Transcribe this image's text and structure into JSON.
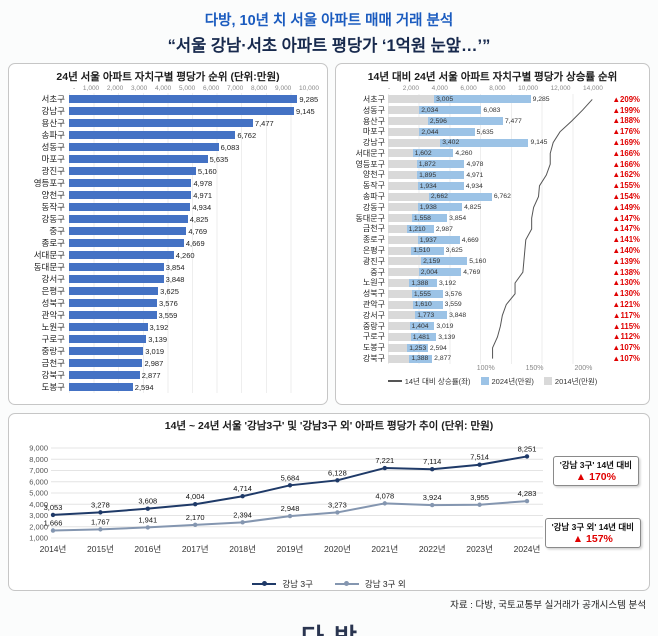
{
  "header": {
    "title": "다방, 10년 치 서울 아파트 매매 거래 분석",
    "subtitle": "“서울 강남·서초 아파트 평당가 ‘1억원 눈앞…’”"
  },
  "footer": {
    "source": "자료 : 다방, 국토교통부 실거래가 공개시스템 분석",
    "logo": "다방"
  },
  "colors": {
    "title_blue": "#1a5bbf",
    "subtitle_navy": "#17294d",
    "bar_blue": "#4472c4",
    "bar_2024": "#9cc3e6",
    "bar_2014": "#d9d9d9",
    "pct_red": "#e00000",
    "rate_line": "#555555",
    "line_gangnam": "#1f3a68",
    "line_other": "#8496b0"
  },
  "chart_data": [
    {
      "id": "price-rank-2024",
      "type": "bar",
      "orientation": "horizontal",
      "title": "24년 서울 아파트 자치구별 평당가 순위 (단위:만원)",
      "xlim": [
        0,
        10000
      ],
      "x_ticks": [
        "-",
        "1,000",
        "2,000",
        "3,000",
        "4,000",
        "5,000",
        "6,000",
        "7,000",
        "8,000",
        "9,000",
        "10,000"
      ],
      "grid": true,
      "categories": [
        "서초구",
        "강남구",
        "용산구",
        "송파구",
        "성동구",
        "마포구",
        "광진구",
        "영등포구",
        "양천구",
        "동작구",
        "강동구",
        "중구",
        "종로구",
        "서대문구",
        "동대문구",
        "강서구",
        "은평구",
        "성북구",
        "관악구",
        "노원구",
        "구로구",
        "중랑구",
        "금천구",
        "강북구",
        "도봉구"
      ],
      "values": [
        9285,
        9145,
        7477,
        6762,
        6083,
        5635,
        5160,
        4978,
        4971,
        4934,
        4825,
        4769,
        4669,
        4260,
        3854,
        3848,
        3625,
        3576,
        3559,
        3192,
        3139,
        3019,
        2987,
        2877,
        2594
      ]
    },
    {
      "id": "growth-rank",
      "type": "bar",
      "orientation": "horizontal",
      "title": "14년 대비 24년 서울 아파트 자치구별 평당가 상승률 순위",
      "xlim": [
        0,
        14000
      ],
      "x_ticks": [
        "-",
        "2,000",
        "4,000",
        "6,000",
        "8,000",
        "10,000",
        "12,000",
        "14,000"
      ],
      "pct_axis_max": 220,
      "pct_ticks": [
        "100%",
        "150%",
        "200%"
      ],
      "legend": [
        "14년 대비 상승률(좌)",
        "2024년(만원)",
        "2014년(만원)"
      ],
      "categories": [
        "서초구",
        "성동구",
        "용산구",
        "마포구",
        "강남구",
        "서대문구",
        "영등포구",
        "양천구",
        "동작구",
        "송파구",
        "강동구",
        "동대문구",
        "금천구",
        "종로구",
        "은평구",
        "광진구",
        "중구",
        "노원구",
        "성북구",
        "관악구",
        "강서구",
        "중랑구",
        "구로구",
        "도봉구",
        "강북구"
      ],
      "series": [
        {
          "name": "2014년(만원)",
          "values": [
            3005,
            2034,
            2596,
            2044,
            3402,
            1602,
            1872,
            1895,
            1934,
            2662,
            1938,
            1558,
            1210,
            1937,
            1510,
            2159,
            2004,
            1388,
            1555,
            1610,
            1773,
            1404,
            1481,
            1253,
            1388
          ]
        },
        {
          "name": "2024년(만원)",
          "values": [
            9285,
            6083,
            7477,
            5635,
            9145,
            4260,
            4978,
            4971,
            4934,
            6762,
            4825,
            3854,
            2987,
            4669,
            3625,
            5160,
            4769,
            3192,
            3576,
            3559,
            3848,
            3019,
            3139,
            2594,
            2877
          ]
        },
        {
          "name": "14년 대비 상승률",
          "values": [
            "▲209%",
            "▲199%",
            "▲188%",
            "▲176%",
            "▲169%",
            "▲166%",
            "▲166%",
            "▲162%",
            "▲155%",
            "▲154%",
            "▲149%",
            "▲147%",
            "▲147%",
            "▲141%",
            "▲140%",
            "▲139%",
            "▲138%",
            "▲130%",
            "▲130%",
            "▲121%",
            "▲117%",
            "▲115%",
            "▲112%",
            "▲107%",
            "▲107%"
          ]
        }
      ]
    },
    {
      "id": "trend",
      "type": "line",
      "title": "14년 ~ 24년 서울 '강남3구' 및 '강남3구 외' 아파트 평당가 추이 (단위: 만원)",
      "x": [
        "2014년",
        "2015년",
        "2016년",
        "2017년",
        "2018년",
        "2019년",
        "2020년",
        "2021년",
        "2022년",
        "2023년",
        "2024년"
      ],
      "ylim": [
        1000,
        9000
      ],
      "y_ticks": [
        "1,000",
        "2,000",
        "3,000",
        "4,000",
        "5,000",
        "6,000",
        "7,000",
        "8,000",
        "9,000"
      ],
      "grid": true,
      "legend_position": "bottom",
      "series": [
        {
          "name": "강남 3구",
          "values": [
            3053,
            3278,
            3608,
            4004,
            4714,
            5684,
            6128,
            7221,
            7114,
            7514,
            8251
          ]
        },
        {
          "name": "강남 3구 외",
          "values": [
            1666,
            1767,
            1941,
            2170,
            2394,
            2948,
            3273,
            4078,
            3924,
            3955,
            4283
          ]
        }
      ],
      "annotations": [
        {
          "label": "'강남 3구' 14년 대비",
          "value": "▲ 170%"
        },
        {
          "label": "'강남 3구 외' 14년 대비",
          "value": "▲ 157%"
        }
      ]
    }
  ]
}
